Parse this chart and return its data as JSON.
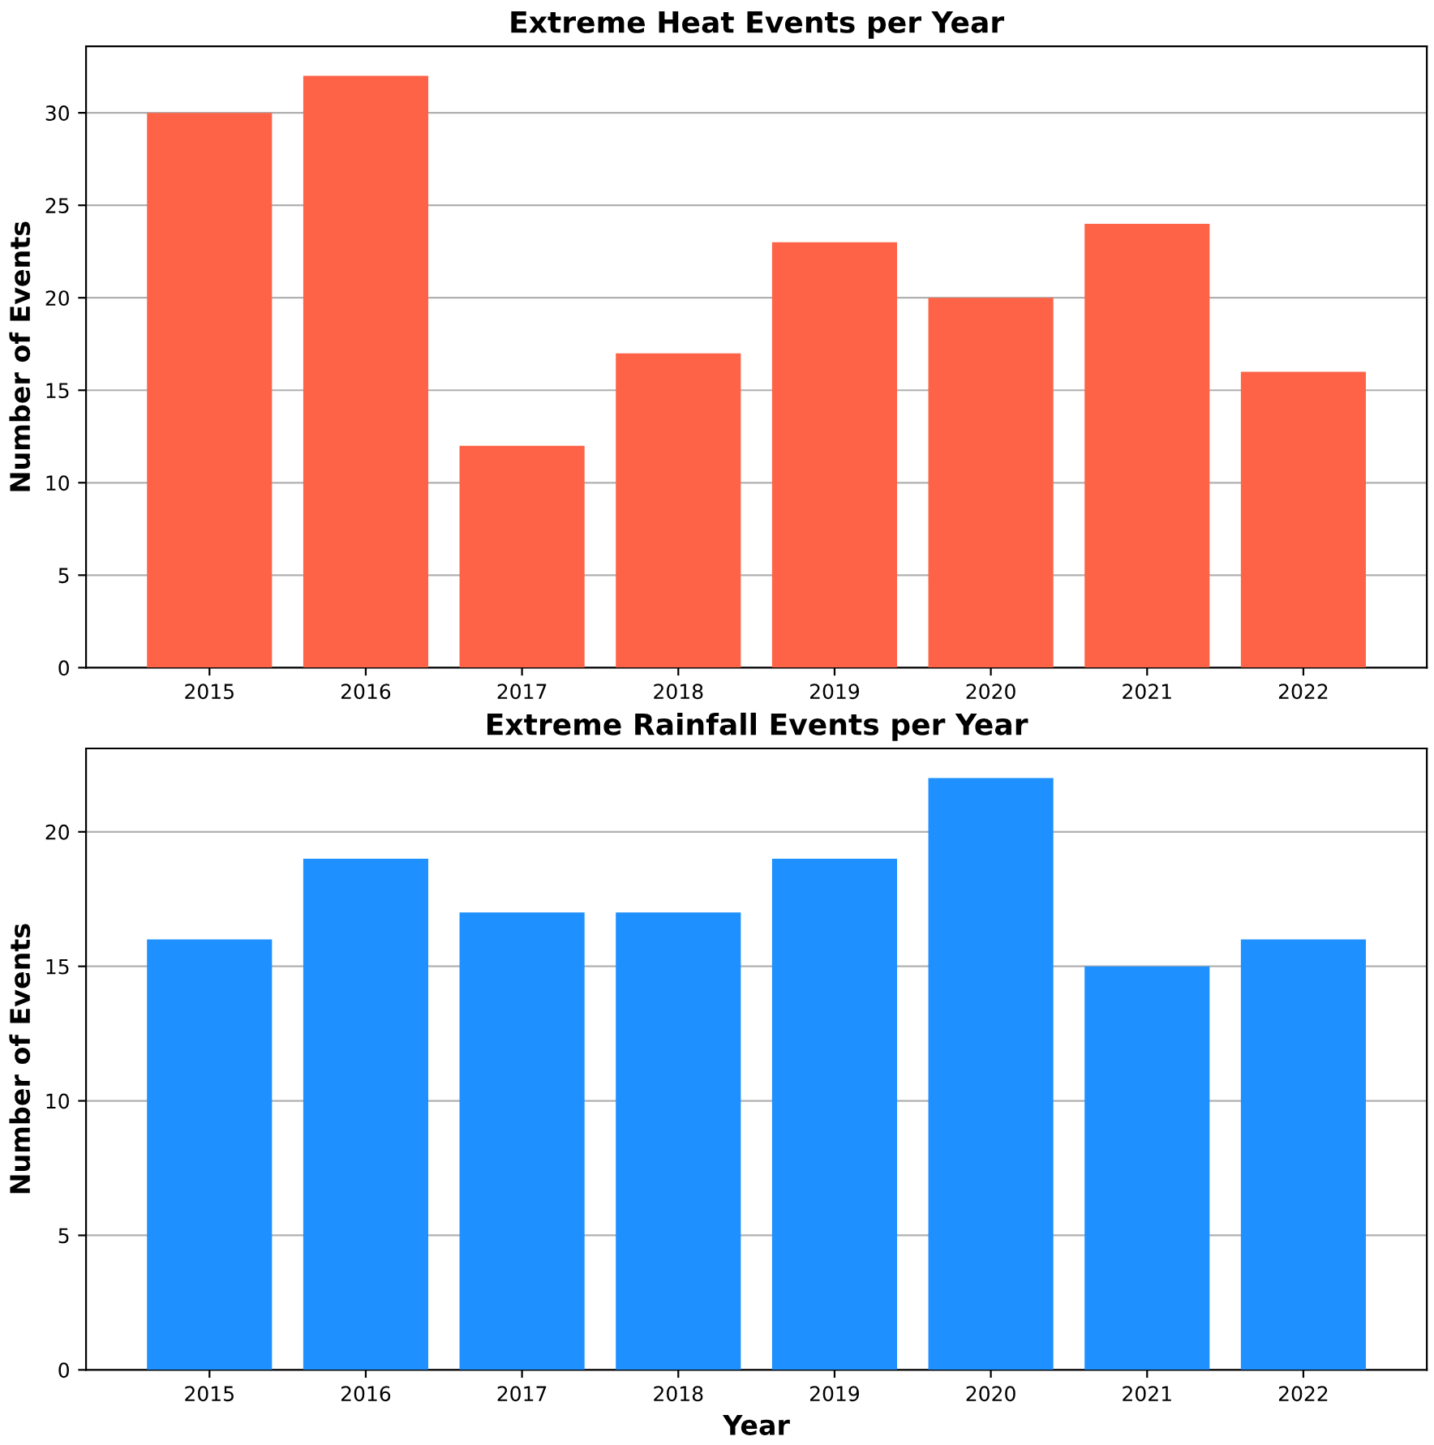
{
  "chart_data": [
    {
      "type": "bar",
      "title": "Extreme Heat Events per Year",
      "ylabel": "Number of Events",
      "categories": [
        "2015",
        "2016",
        "2017",
        "2018",
        "2019",
        "2020",
        "2021",
        "2022"
      ],
      "values": [
        30,
        32,
        12,
        17,
        23,
        20,
        24,
        16
      ],
      "color": "#ff6347",
      "ylim": [
        0,
        33.6
      ],
      "yticks": [
        0,
        5,
        10,
        15,
        20,
        25,
        30
      ],
      "grid": "y"
    },
    {
      "type": "bar",
      "title": "Extreme Rainfall Events per Year",
      "xlabel": "Year",
      "ylabel": "Number of Events",
      "categories": [
        "2015",
        "2016",
        "2017",
        "2018",
        "2019",
        "2020",
        "2021",
        "2022"
      ],
      "values": [
        16,
        19,
        17,
        17,
        19,
        22,
        15,
        16
      ],
      "color": "#1e90ff",
      "ylim": [
        0,
        23.1
      ],
      "yticks": [
        0,
        5,
        10,
        15,
        20
      ],
      "grid": "y"
    }
  ]
}
